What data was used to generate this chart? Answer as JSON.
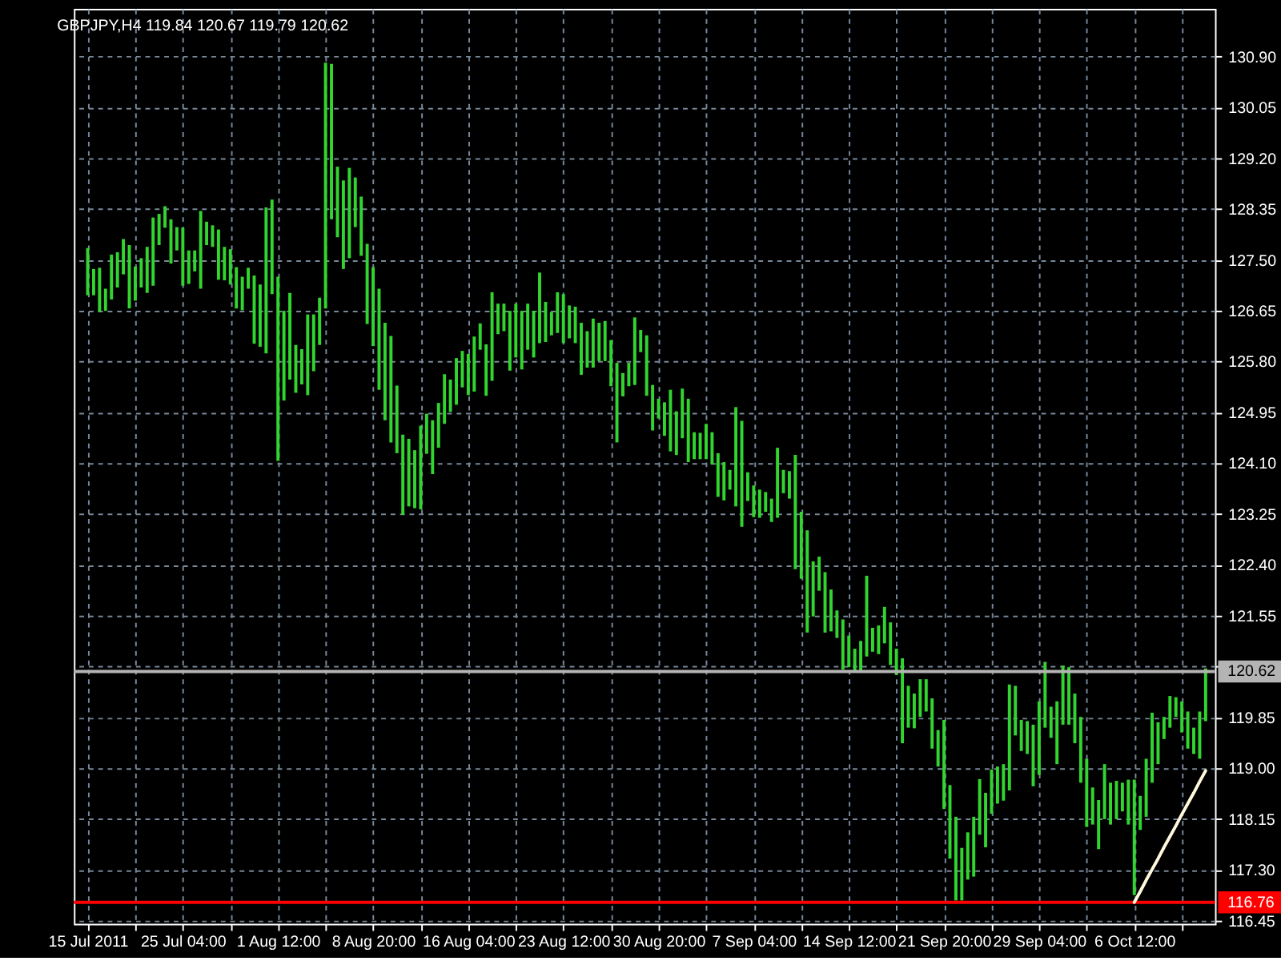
{
  "chart_data": {
    "type": "bar",
    "title": "GBPJPY,H4  119.84 120.67 119.79 120.62",
    "categories": [
      "15 Jul 2011",
      null,
      null,
      null,
      null,
      null,
      null,
      null,
      null,
      null,
      null,
      null,
      null,
      null,
      null,
      null,
      "25 Jul 04:00",
      null,
      null,
      null,
      null,
      null,
      null,
      null,
      null,
      null,
      null,
      null,
      null,
      null,
      null,
      null,
      "1 Aug 12:00",
      null,
      null,
      null,
      null,
      null,
      null,
      null,
      null,
      null,
      null,
      null,
      null,
      null,
      null,
      null,
      "8 Aug 20:00",
      null,
      null,
      null,
      null,
      null,
      null,
      null,
      null,
      null,
      null,
      null,
      null,
      null,
      null,
      null,
      "16 Aug 04:00",
      null,
      null,
      null,
      null,
      null,
      null,
      null,
      null,
      null,
      null,
      null,
      null,
      null,
      null,
      null,
      "23 Aug 12:00",
      null,
      null,
      null,
      null,
      null,
      null,
      null,
      null,
      null,
      null,
      null,
      null,
      null,
      null,
      null,
      "30 Aug 20:00",
      null,
      null,
      null,
      null,
      null,
      null,
      null,
      null,
      null,
      null,
      null,
      null,
      null,
      null,
      null,
      "7 Sep 04:00",
      null,
      null,
      null,
      null,
      null,
      null,
      null,
      null,
      null,
      null,
      null,
      null,
      null,
      null,
      null,
      "14 Sep 12:00",
      null,
      null,
      null,
      null,
      null,
      null,
      null,
      null,
      null,
      null,
      null,
      null,
      null,
      null,
      null,
      "21 Sep 20:00",
      null,
      null,
      null,
      null,
      null,
      null,
      null,
      null,
      null,
      null,
      null,
      null,
      null,
      null,
      null,
      "29 Sep 04:00",
      null,
      null,
      null,
      null,
      null,
      null,
      null,
      null,
      null,
      null,
      null,
      null,
      null,
      null,
      null,
      "6 Oct 12:00",
      null,
      null,
      null,
      null,
      null,
      null,
      null,
      null,
      null,
      null,
      null,
      null
    ],
    "series": [
      {
        "color": "#32d52f",
        "base": [
          126.91,
          126.91,
          126.63,
          126.65,
          126.84,
          127.04,
          127.26,
          126.69,
          126.82,
          127.04,
          126.95,
          127.07,
          127.75,
          128.04,
          127.44,
          127.66,
          127.07,
          127.1,
          127.31,
          127.02,
          127.75,
          127.72,
          127.17,
          127.16,
          127.09,
          126.69,
          126.66,
          127.02,
          126.1,
          126.05,
          125.94,
          126.93,
          124.14,
          125.15,
          125.5,
          125.28,
          125.42,
          125.24,
          125.64,
          126.08,
          126.69,
          128.18,
          127.88,
          127.35,
          127.53,
          128.05,
          127.57,
          126.43,
          126.06,
          125.33,
          124.82,
          124.45,
          124.27,
          123.24,
          123.38,
          123.35,
          123.33,
          124.26,
          123.92,
          124.36,
          124.76,
          124.96,
          125.08,
          125.37,
          125.24,
          125.3,
          126.0,
          125.23,
          125.48,
          126.26,
          126.31,
          125.65,
          125.87,
          125.67,
          126.0,
          125.87,
          126.11,
          126.13,
          126.24,
          126.28,
          126.11,
          126.19,
          126.11,
          125.58,
          125.7,
          125.7,
          125.81,
          125.81,
          125.39,
          124.45,
          125.22,
          125.39,
          125.41,
          125.96,
          125.23,
          124.65,
          124.85,
          124.56,
          124.3,
          124.24,
          124.52,
          124.12,
          124.17,
          124.17,
          124.17,
          124.08,
          123.54,
          123.48,
          123.66,
          123.38,
          123.04,
          123.47,
          123.2,
          123.19,
          123.29,
          123.12,
          123.19,
          123.6,
          123.51,
          122.33,
          122.17,
          121.27,
          121.54,
          121.97,
          121.27,
          121.29,
          121.18,
          120.65,
          120.69,
          120.63,
          120.62,
          120.87,
          120.95,
          120.91,
          121.09,
          120.73,
          120.56,
          119.42,
          119.68,
          119.67,
          119.86,
          119.95,
          119.33,
          119.03,
          118.32,
          117.49,
          116.79,
          116.79,
          117.14,
          117.19,
          117.89,
          117.68,
          118.24,
          118.41,
          118.46,
          118.63,
          119.55,
          119.29,
          119.24,
          118.7,
          118.89,
          119.68,
          119.51,
          119.07,
          119.73,
          119.73,
          119.42,
          118.76,
          118.02,
          118.06,
          117.65,
          118.15,
          118.06,
          118.15,
          118.28,
          118.06,
          116.88,
          117.97,
          118.19,
          118.76,
          119.07,
          119.49,
          119.68,
          119.86,
          119.6,
          119.33,
          119.24,
          119.16,
          119.79
        ],
        "values": [
          0.79,
          0.44,
          0.74,
          0.37,
          0.75,
          0.59,
          0.59,
          1.06,
          0.57,
          0.49,
          0.77,
          1.14,
          0.52,
          0.36,
          0.74,
          0.39,
          0.97,
          0.56,
          0.35,
          1.3,
          0.39,
          0.36,
          0.84,
          0.56,
          0.59,
          0.69,
          0.56,
          0.35,
          1.14,
          1.04,
          2.44,
          1.58,
          3.08,
          1.5,
          1.45,
          0.8,
          0.59,
          1.35,
          0.95,
          0.79,
          4.11,
          2.6,
          1.18,
          1.48,
          1.51,
          0.83,
          0.99,
          1.34,
          1.32,
          1.69,
          1.63,
          1.78,
          1.13,
          1.34,
          1.13,
          0.97,
          1.4,
          0.67,
          0.9,
          0.75,
          0.83,
          0.54,
          0.78,
          0.61,
          0.69,
          0.92,
          0.44,
          0.86,
          1.48,
          0.51,
          0.46,
          1.0,
          0.9,
          0.98,
          0.77,
          0.78,
          1.18,
          0.67,
          0.39,
          0.68,
          0.82,
          0.55,
          0.61,
          0.87,
          0.61,
          0.82,
          0.64,
          0.67,
          0.77,
          1.33,
          0.39,
          0.39,
          1.13,
          0.37,
          1.01,
          0.76,
          0.33,
          0.56,
          1.03,
          0.73,
          0.83,
          1.06,
          0.45,
          0.44,
          0.59,
          0.54,
          0.73,
          0.64,
          0.33,
          1.66,
          1.77,
          0.48,
          0.53,
          0.47,
          0.33,
          0.39,
          1.17,
          0.39,
          0.46,
          1.91,
          1.12,
          1.71,
          0.92,
          0.57,
          1.01,
          0.7,
          0.46,
          0.84,
          0.53,
          0.37,
          0.51,
          1.35,
          0.4,
          0.48,
          0.61,
          0.71,
          0.44,
          1.42,
          0.7,
          0.58,
          0.63,
          0.54,
          0.84,
          0.61,
          1.49,
          1.23,
          1.4,
          0.88,
          0.79,
          1.0,
          0.93,
          0.91,
          0.74,
          0.62,
          0.61,
          1.77,
          0.83,
          0.52,
          0.55,
          1.03,
          1.23,
          1.1,
          0.52,
          1.05,
          0.99,
          0.96,
          0.83,
          1.1,
          1.14,
          0.62,
          0.82,
          0.92,
          0.7,
          0.64,
          0.48,
          0.75,
          1.93,
          0.57,
          0.97,
          1.17,
          0.7,
          0.37,
          0.53,
          0.33,
          0.52,
          0.62,
          0.44,
          0.79,
          0.88
        ]
      },
      {
        "type": "line",
        "color": "#fff8dc",
        "values": [
          null,
          null,
          null,
          null,
          null,
          null,
          null,
          null,
          null,
          null,
          null,
          null,
          null,
          null,
          null,
          null,
          null,
          null,
          null,
          null,
          null,
          null,
          null,
          null,
          null,
          null,
          null,
          null,
          null,
          null,
          null,
          null,
          null,
          null,
          null,
          null,
          null,
          null,
          null,
          null,
          null,
          null,
          null,
          null,
          null,
          null,
          null,
          null,
          null,
          null,
          null,
          null,
          null,
          null,
          null,
          null,
          null,
          null,
          null,
          null,
          null,
          null,
          null,
          null,
          null,
          null,
          null,
          null,
          null,
          null,
          null,
          null,
          null,
          null,
          null,
          null,
          null,
          null,
          null,
          null,
          null,
          null,
          null,
          null,
          null,
          null,
          null,
          null,
          null,
          null,
          null,
          null,
          null,
          null,
          null,
          null,
          null,
          null,
          null,
          null,
          null,
          null,
          null,
          null,
          null,
          null,
          null,
          null,
          null,
          null,
          null,
          null,
          null,
          null,
          null,
          null,
          null,
          null,
          null,
          null,
          null,
          null,
          null,
          null,
          null,
          null,
          null,
          null,
          null,
          null,
          null,
          null,
          null,
          null,
          null,
          null,
          null,
          null,
          null,
          null,
          null,
          null,
          null,
          null,
          null,
          null,
          null,
          null,
          null,
          null,
          null,
          null,
          null,
          null,
          null,
          null,
          null,
          null,
          null,
          null,
          null,
          null,
          null,
          null,
          null,
          null,
          null,
          null,
          null,
          null,
          null,
          null,
          null,
          null,
          null,
          null,
          116.76,
          116.94,
          117.13,
          117.31,
          117.49,
          117.68,
          117.86,
          118.04,
          118.23,
          118.41,
          118.59,
          118.78,
          118.96
        ]
      }
    ],
    "ylim": [
      116.4,
      131.7
    ],
    "yticks": [
      116.45,
      {
        "value": 117.3,
        "label": "117.30"
      },
      118.15,
      {
        "value": 119,
        "label": "119.00"
      },
      119.85,
      {
        "value": 120.7,
        "label": null
      },
      121.55,
      {
        "value": 122.4,
        "label": "122.40"
      },
      123.25,
      {
        "value": 124.1,
        "label": "124.10"
      },
      124.95,
      {
        "value": 125.8,
        "label": "125.80"
      },
      126.65,
      {
        "value": 127.5,
        "label": "127.50"
      },
      128.35,
      {
        "value": 129.2,
        "label": "129.20"
      },
      130.05,
      {
        "value": 130.9,
        "label": "130.90"
      }
    ],
    "ref_lines": [
      {
        "axis": "y",
        "value": 120.62,
        "label": "120.62",
        "color": "#b4b4b4"
      },
      {
        "axis": "y",
        "value": 116.76,
        "label": "116.76",
        "color": "#ff0000"
      }
    ],
    "grid": true
  }
}
